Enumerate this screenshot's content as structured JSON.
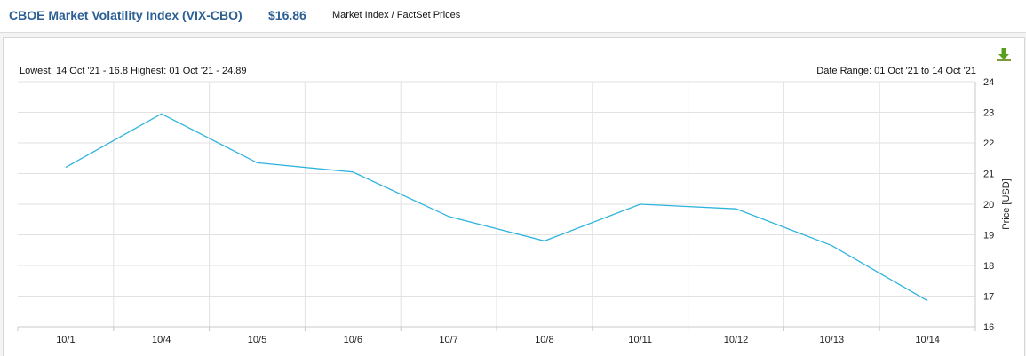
{
  "header": {
    "title": "CBOE Market Volatility Index (VIX-CBO)",
    "price": "$16.86",
    "source": "Market Index / FactSet Prices"
  },
  "info": {
    "range_summary": "Lowest: 14 Oct '21 - 16.8  Highest: 01 Oct '21 - 24.89",
    "date_range": "Date Range: 01 Oct '21 to 14 Oct '21"
  },
  "icons": {
    "download": "download-icon"
  },
  "colors": {
    "line": "#2fb3dd",
    "grid": "#e2e2e2",
    "title": "#2c5f93"
  },
  "chart_data": {
    "type": "line",
    "categories": [
      "10/1",
      "10/4",
      "10/5",
      "10/6",
      "10/7",
      "10/8",
      "10/11",
      "10/12",
      "10/13",
      "10/14"
    ],
    "series": [
      {
        "values": [
          21.2,
          22.95,
          21.35,
          21.05,
          19.6,
          18.8,
          20.0,
          19.85,
          18.65,
          16.85
        ]
      }
    ],
    "ylabel": "Price [USD]",
    "ylim": [
      16,
      24
    ],
    "yticks": [
      16,
      17,
      18,
      19,
      20,
      21,
      22,
      23,
      24
    ],
    "y_axis": "right",
    "grid": true
  }
}
